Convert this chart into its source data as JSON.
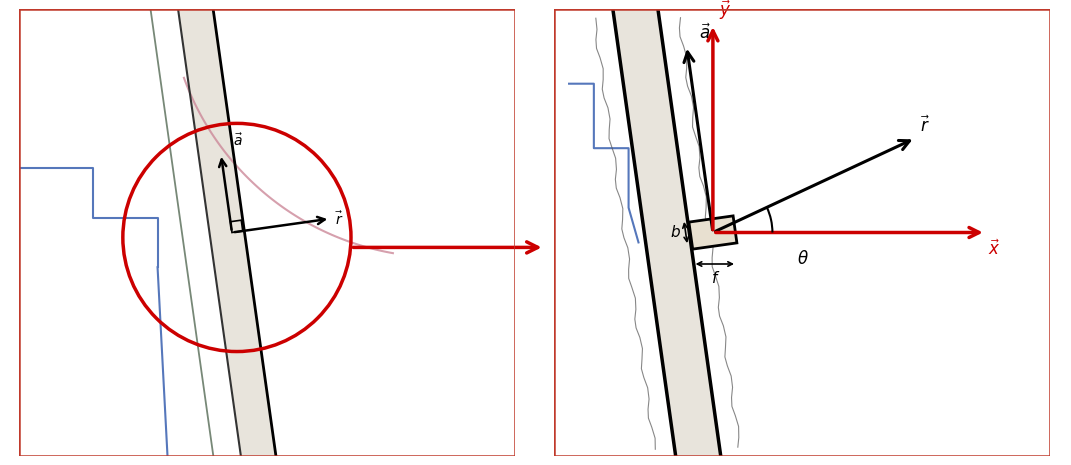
{
  "fig_width": 10.71,
  "fig_height": 4.65,
  "dpi": 100,
  "border_color": "#c0392b",
  "bg_color": "#ffffff",
  "red_color": "#cc0000",
  "blue_color": "#5577bb",
  "pink_color": "#cc8899",
  "dark_gray": "#333333",
  "mid_gray": "#666666",
  "light_gray": "#aaaaaa",
  "green_gray": "#778877",
  "label_a": "a",
  "label_r": "r",
  "label_y": "y",
  "label_x": "x",
  "label_b": "b",
  "label_f": "f",
  "label_theta": "θ",
  "tooth_fill": "#e8e4dc",
  "tooth_lw": 2.5,
  "vec_lw": 2.2,
  "red_vec_lw": 2.5
}
